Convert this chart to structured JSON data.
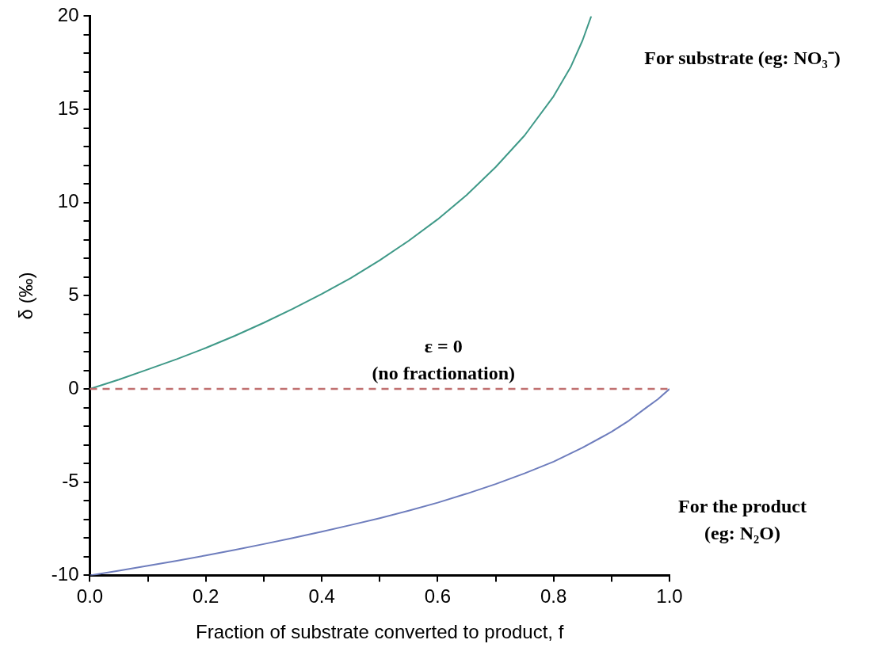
{
  "chart_data": {
    "type": "line",
    "xlabel": "Fraction of substrate converted to product, f",
    "ylabel": "δ (‰)",
    "xlim": [
      0,
      1
    ],
    "ylim": [
      -10,
      20
    ],
    "xticks": [
      {
        "value": 0,
        "label": "0.0"
      },
      {
        "value": 0.1,
        "label": null
      },
      {
        "value": 0.2,
        "label": "0.2"
      },
      {
        "value": 0.3,
        "label": null
      },
      {
        "value": 0.4,
        "label": "0.4"
      },
      {
        "value": 0.5,
        "label": null
      },
      {
        "value": 0.6,
        "label": "0.6"
      },
      {
        "value": 0.7,
        "label": null
      },
      {
        "value": 0.8,
        "label": "0.8"
      },
      {
        "value": 0.9,
        "label": null
      },
      {
        "value": 1,
        "label": "1.0"
      }
    ],
    "yticks": [
      -10,
      {
        "value": -9,
        "label": null
      },
      {
        "value": -8,
        "label": null
      },
      {
        "value": -7,
        "label": null
      },
      {
        "value": -6,
        "label": null
      },
      -5,
      {
        "value": -4,
        "label": null
      },
      {
        "value": -3,
        "label": null
      },
      {
        "value": -2,
        "label": null
      },
      {
        "value": -1,
        "label": null
      },
      0,
      {
        "value": 1,
        "label": null
      },
      {
        "value": 2,
        "label": null
      },
      {
        "value": 3,
        "label": null
      },
      {
        "value": 4,
        "label": null
      },
      5,
      {
        "value": 6,
        "label": null
      },
      {
        "value": 7,
        "label": null
      },
      {
        "value": 8,
        "label": null
      },
      {
        "value": 9,
        "label": null
      },
      10,
      {
        "value": 11,
        "label": null
      },
      {
        "value": 12,
        "label": null
      },
      {
        "value": 13,
        "label": null
      },
      {
        "value": 14,
        "label": null
      },
      15,
      {
        "value": 16,
        "label": null
      },
      {
        "value": 17,
        "label": null
      },
      {
        "value": 18,
        "label": null
      },
      {
        "value": 19,
        "label": null
      },
      20
    ],
    "grid": false,
    "legend": false,
    "marker": "none",
    "line_style": "solid",
    "series": [
      {
        "name": "For substrate (eg: NO₃⁻)",
        "color": "#3f9988",
        "x": [
          0,
          0.05,
          0.1,
          0.15,
          0.2,
          0.25,
          0.3,
          0.35,
          0.4,
          0.45,
          0.5,
          0.55,
          0.6,
          0.65,
          0.7,
          0.75,
          0.8,
          0.83,
          0.85,
          0.865
        ],
        "values": [
          0,
          0.5,
          1.05,
          1.6,
          2.2,
          2.85,
          3.55,
          4.3,
          5.1,
          5.95,
          6.9,
          7.95,
          9.1,
          10.4,
          11.9,
          13.6,
          15.7,
          17.3,
          18.7,
          20
        ]
      },
      {
        "name": "For the product\n(eg: N₂O)",
        "color": "#6e7dbd",
        "x": [
          0,
          0.05,
          0.1,
          0.15,
          0.2,
          0.25,
          0.3,
          0.35,
          0.4,
          0.45,
          0.5,
          0.55,
          0.6,
          0.65,
          0.7,
          0.75,
          0.8,
          0.85,
          0.9,
          0.93,
          0.96,
          0.98,
          1
        ],
        "values": [
          -10,
          -9.75,
          -9.48,
          -9.22,
          -8.93,
          -8.63,
          -8.32,
          -8,
          -7.66,
          -7.3,
          -6.93,
          -6.53,
          -6.1,
          -5.62,
          -5.1,
          -4.53,
          -3.9,
          -3.15,
          -2.3,
          -1.7,
          -1,
          -0.55,
          0
        ]
      }
    ],
    "ref_lines": [
      {
        "axis": "y",
        "value": 0,
        "label": "ε = 0\n(no fractionation)",
        "color": "#c07070",
        "line_style": "dashed"
      }
    ]
  }
}
